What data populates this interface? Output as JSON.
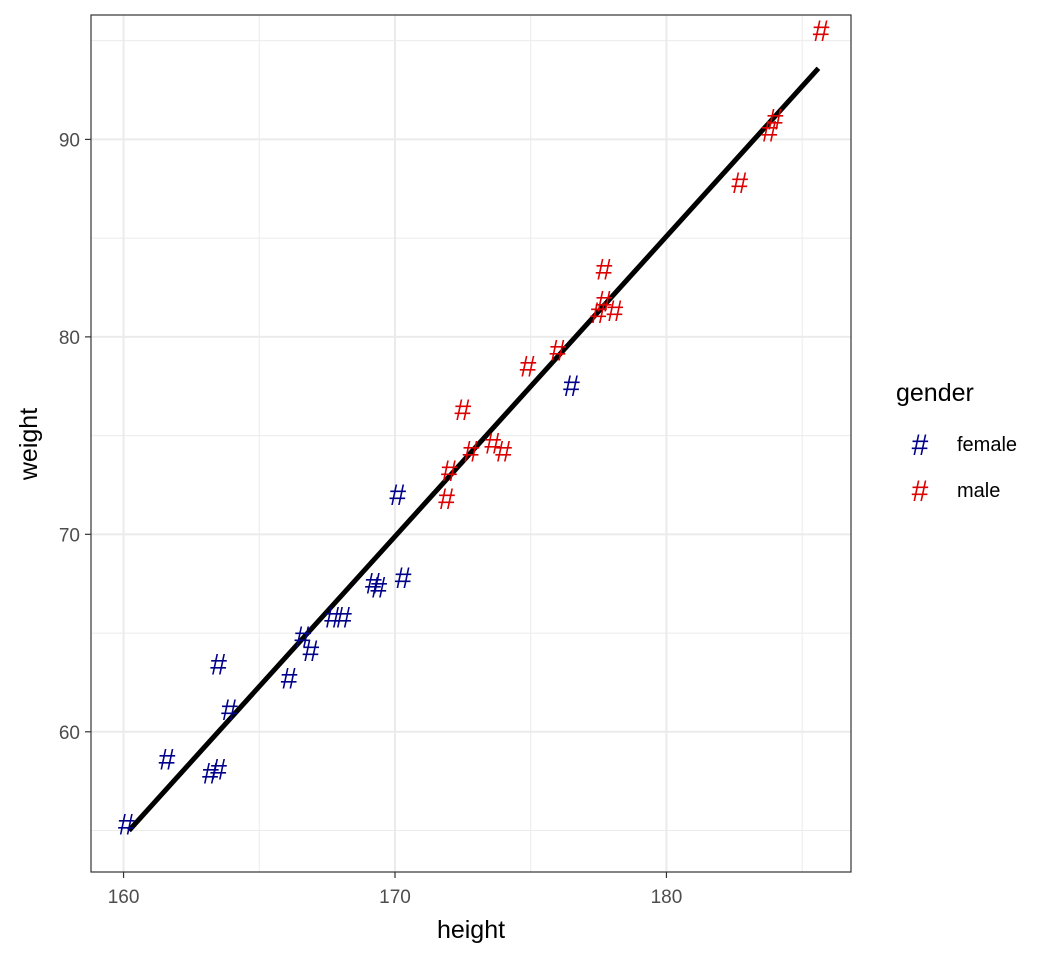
{
  "chart_data": {
    "type": "scatter",
    "xlabel": "height",
    "ylabel": "weight",
    "xlim": [
      158.8,
      186.8
    ],
    "ylim": [
      52.9,
      96.3
    ],
    "x_ticks": [
      160,
      170,
      180
    ],
    "y_ticks": [
      60,
      70,
      80,
      90
    ],
    "grid": true,
    "point_symbol": "#",
    "legend": {
      "title": "gender",
      "placement": "right",
      "entries": [
        {
          "label": "female",
          "color": "#00008B"
        },
        {
          "label": "male",
          "color": "#DD0000"
        }
      ]
    },
    "fit_line": {
      "color": "#000000",
      "points": [
        [
          160.2,
          55.0
        ],
        [
          185.6,
          93.6
        ]
      ]
    },
    "series": [
      {
        "name": "female",
        "color": "#00008B",
        "points": [
          [
            160.1,
            55.3
          ],
          [
            161.6,
            58.6
          ],
          [
            163.2,
            57.9
          ],
          [
            163.5,
            58.1
          ],
          [
            163.5,
            63.4
          ],
          [
            163.9,
            61.1
          ],
          [
            166.1,
            62.7
          ],
          [
            166.6,
            64.8
          ],
          [
            166.9,
            64.1
          ],
          [
            167.7,
            65.8
          ],
          [
            168.1,
            65.8
          ],
          [
            169.2,
            67.5
          ],
          [
            169.4,
            67.3
          ],
          [
            170.1,
            72.0
          ],
          [
            170.3,
            67.8
          ],
          [
            176.5,
            77.5
          ]
        ]
      },
      {
        "name": "male",
        "color": "#DD0000",
        "points": [
          [
            171.9,
            71.8
          ],
          [
            172.0,
            73.2
          ],
          [
            172.5,
            76.3
          ],
          [
            172.8,
            74.2
          ],
          [
            173.6,
            74.6
          ],
          [
            174.0,
            74.2
          ],
          [
            174.9,
            78.5
          ],
          [
            176.0,
            79.3
          ],
          [
            177.5,
            81.2
          ],
          [
            177.7,
            81.8
          ],
          [
            177.7,
            83.4
          ],
          [
            178.1,
            81.3
          ],
          [
            182.7,
            87.8
          ],
          [
            183.8,
            90.4
          ],
          [
            184.0,
            91.0
          ],
          [
            185.7,
            95.5
          ]
        ]
      }
    ]
  }
}
